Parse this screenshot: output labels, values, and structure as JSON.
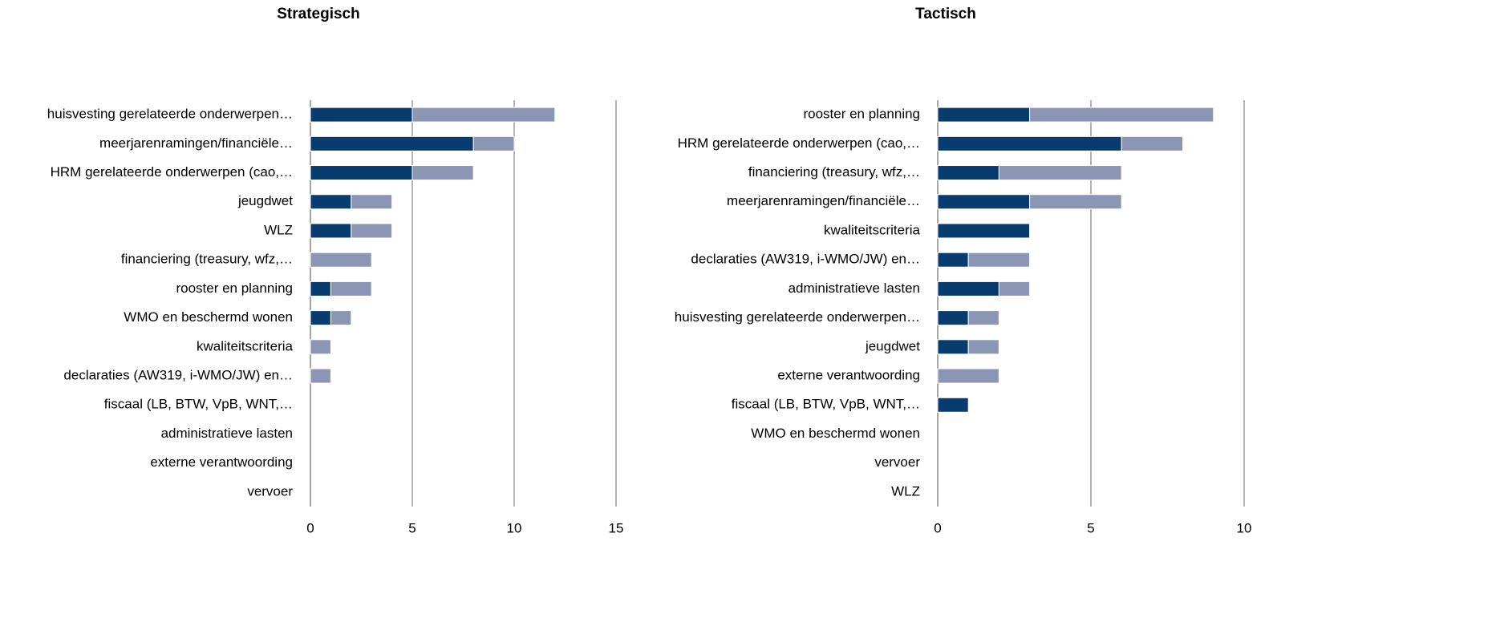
{
  "chart_data": [
    {
      "type": "bar",
      "orientation": "horizontal",
      "stacked": true,
      "title": "Strategisch",
      "categories": [
        "huisvesting gerelateerde onderwerpen…",
        "meerjarenramingen/financiële…",
        "HRM gerelateerde onderwerpen (cao,…",
        "jeugdwet",
        "WLZ",
        "financiering (treasury, wfz,…",
        "rooster en planning",
        "WMO en beschermd wonen",
        "kwaliteitscriteria",
        "declaraties (AW319, i-WMO/JW) en…",
        "fiscaal (LB, BTW, VpB, WNT,…",
        "administratieve lasten",
        "externe verantwoording",
        "vervoer"
      ],
      "series": [
        {
          "color": "#083c6e",
          "values": [
            5,
            8,
            5,
            2,
            2,
            0,
            1,
            1,
            0,
            0,
            0,
            0,
            0,
            0
          ]
        },
        {
          "color": "#8a96b3",
          "values": [
            7,
            2,
            3,
            2,
            2,
            3,
            2,
            1,
            1,
            1,
            0,
            0,
            0,
            0
          ]
        }
      ],
      "xlim": [
        0,
        15
      ],
      "xticks": [
        0,
        5,
        10,
        15
      ],
      "grid": true
    },
    {
      "type": "bar",
      "orientation": "horizontal",
      "stacked": true,
      "title": "Tactisch",
      "categories": [
        "rooster en planning",
        "HRM gerelateerde onderwerpen (cao,…",
        "financiering (treasury, wfz,…",
        "meerjarenramingen/financiële…",
        "kwaliteitscriteria",
        "declaraties (AW319, i-WMO/JW) en…",
        "administratieve lasten",
        "huisvesting gerelateerde onderwerpen…",
        "jeugdwet",
        "externe verantwoording",
        "fiscaal (LB, BTW, VpB, WNT,…",
        "WMO en beschermd wonen",
        "vervoer",
        "WLZ"
      ],
      "series": [
        {
          "color": "#083c6e",
          "values": [
            3,
            6,
            2,
            3,
            3,
            1,
            2,
            1,
            1,
            0,
            1,
            0,
            0,
            0
          ]
        },
        {
          "color": "#8a96b3",
          "values": [
            6,
            2,
            4,
            3,
            0,
            2,
            1,
            1,
            1,
            2,
            0,
            0,
            0,
            0
          ]
        }
      ],
      "xlim": [
        0,
        10
      ],
      "xticks": [
        0,
        5,
        10
      ],
      "grid": true
    }
  ]
}
